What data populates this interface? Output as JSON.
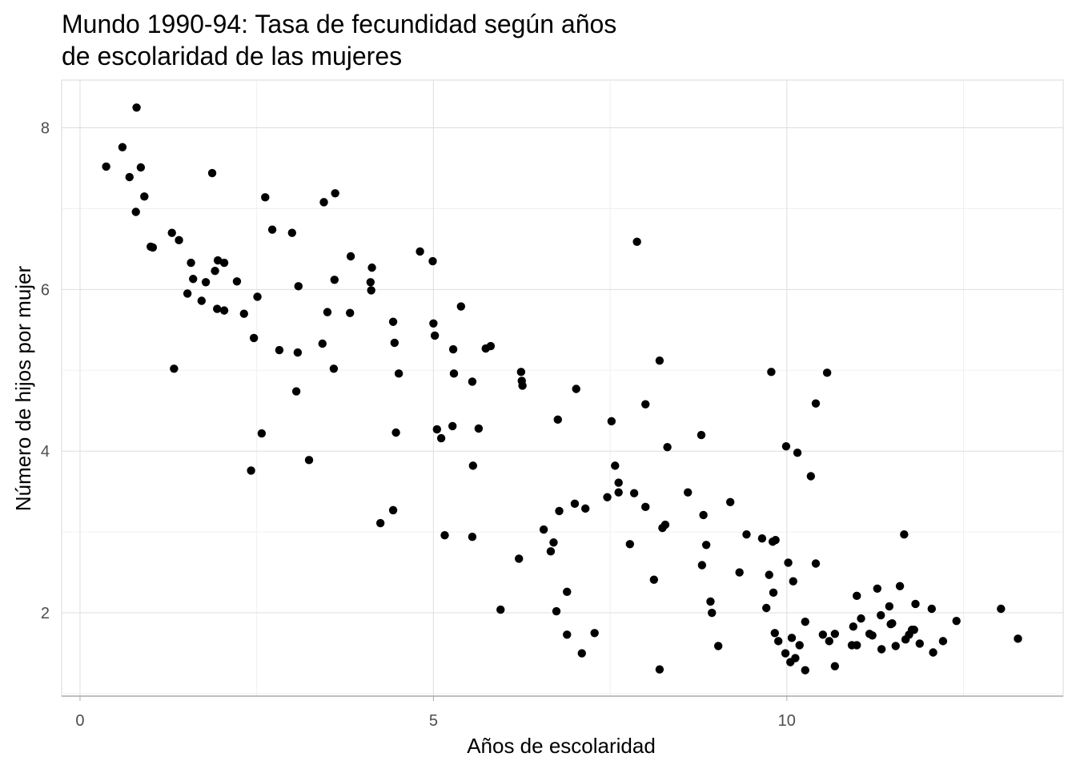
{
  "chart_data": {
    "type": "scatter",
    "title": "Mundo 1990-94: Tasa de fecundidad según años de escolaridad de las mujeres",
    "x_label": "Años de escolaridad",
    "y_label": "Número de hijos por mujer",
    "color": "#000000",
    "xlim": [
      -0.26,
      13.91
    ],
    "ylim": [
      0.97,
      8.59
    ],
    "xticks": [
      0,
      5,
      10
    ],
    "yticks": [
      2,
      4,
      6,
      8
    ],
    "xminor": [
      2.5,
      7.5,
      12.5
    ],
    "yminor": [
      1,
      3,
      5,
      7
    ],
    "grid": true,
    "x": [
      0.37,
      0.6,
      0.7,
      0.8,
      0.86,
      0.91,
      0.79,
      1.0,
      1.03,
      1.3,
      1.4,
      1.57,
      1.6,
      1.78,
      1.91,
      1.95,
      2.04,
      1.87,
      1.33,
      1.52,
      1.72,
      1.94,
      2.04,
      2.22,
      2.32,
      2.46,
      2.51,
      2.57,
      2.42,
      2.62,
      2.72,
      2.82,
      3.0,
      3.09,
      3.08,
      3.06,
      3.24,
      3.43,
      3.45,
      3.5,
      3.6,
      3.61,
      3.59,
      3.83,
      3.82,
      4.11,
      4.13,
      4.12,
      4.25,
      4.43,
      4.45,
      4.43,
      4.47,
      4.51,
      4.81,
      4.99,
      5.0,
      5.02,
      5.05,
      5.11,
      5.16,
      5.28,
      5.29,
      5.27,
      5.39,
      5.55,
      5.56,
      5.55,
      5.64,
      5.74,
      5.81,
      5.95,
      6.21,
      6.24,
      6.25,
      6.26,
      6.56,
      6.66,
      6.7,
      6.76,
      6.78,
      6.74,
      6.89,
      6.89,
      7.0,
      7.02,
      7.1,
      7.15,
      7.28,
      7.46,
      7.52,
      7.57,
      7.62,
      7.62,
      7.78,
      7.84,
      7.88,
      8.0,
      8.0,
      8.12,
      8.2,
      8.2,
      8.24,
      8.28,
      8.31,
      8.6,
      8.79,
      8.82,
      8.86,
      8.8,
      8.92,
      8.94,
      9.03,
      9.2,
      9.33,
      9.43,
      9.65,
      9.71,
      9.75,
      9.78,
      9.8,
      9.84,
      9.81,
      9.83,
      9.88,
      9.99,
      10.02,
      9.98,
      10.05,
      10.07,
      10.09,
      10.12,
      10.15,
      10.18,
      10.26,
      10.26,
      10.34,
      10.41,
      10.41,
      10.51,
      10.57,
      10.6,
      10.68,
      10.68,
      10.94,
      10.92,
      10.99,
      10.99,
      11.05,
      11.17,
      11.21,
      11.28,
      11.34,
      11.33,
      11.45,
      11.47,
      11.49,
      11.54,
      11.6,
      11.66,
      11.68,
      11.73,
      11.77,
      11.8,
      11.82,
      11.88,
      12.05,
      12.07,
      12.21,
      12.4,
      13.03,
      13.27
    ],
    "values": [
      7.52,
      7.76,
      7.39,
      8.25,
      7.51,
      7.15,
      6.96,
      6.53,
      6.52,
      6.7,
      6.61,
      6.33,
      6.13,
      6.09,
      6.23,
      6.36,
      6.33,
      7.44,
      5.02,
      5.95,
      5.86,
      5.76,
      5.74,
      6.1,
      5.7,
      5.4,
      5.91,
      4.22,
      3.76,
      7.14,
      6.74,
      5.25,
      6.7,
      6.04,
      5.22,
      4.74,
      3.89,
      5.33,
      7.08,
      5.72,
      6.12,
      7.19,
      5.02,
      6.41,
      5.71,
      6.09,
      6.27,
      5.99,
      3.11,
      5.6,
      5.34,
      3.27,
      4.23,
      4.96,
      6.47,
      6.35,
      5.58,
      5.43,
      4.27,
      4.16,
      2.96,
      5.26,
      4.96,
      4.31,
      5.79,
      4.86,
      3.82,
      2.94,
      4.28,
      5.27,
      5.3,
      2.04,
      2.67,
      4.98,
      4.87,
      4.81,
      3.03,
      2.76,
      2.87,
      4.39,
      3.26,
      2.02,
      1.73,
      2.26,
      3.35,
      4.77,
      1.5,
      3.29,
      1.75,
      3.43,
      4.37,
      3.82,
      3.61,
      3.49,
      2.85,
      3.48,
      6.59,
      3.31,
      4.58,
      2.41,
      5.12,
      1.3,
      3.05,
      3.09,
      4.05,
      3.49,
      4.2,
      3.21,
      2.84,
      2.59,
      2.14,
      2.0,
      1.59,
      3.37,
      2.5,
      2.97,
      2.92,
      2.06,
      2.47,
      4.98,
      2.88,
      2.9,
      2.25,
      1.75,
      1.65,
      4.06,
      2.62,
      1.5,
      1.39,
      1.69,
      2.39,
      1.44,
      3.98,
      1.6,
      1.89,
      1.29,
      3.69,
      2.61,
      4.59,
      1.73,
      4.97,
      1.65,
      1.74,
      1.34,
      1.83,
      1.6,
      1.6,
      2.21,
      1.93,
      1.74,
      1.72,
      2.3,
      1.55,
      1.97,
      2.08,
      1.86,
      1.87,
      1.59,
      2.33,
      2.97,
      1.67,
      1.73,
      1.79,
      1.79,
      2.11,
      1.62,
      2.05,
      1.51,
      1.65,
      1.9,
      2.05,
      1.68
    ]
  }
}
